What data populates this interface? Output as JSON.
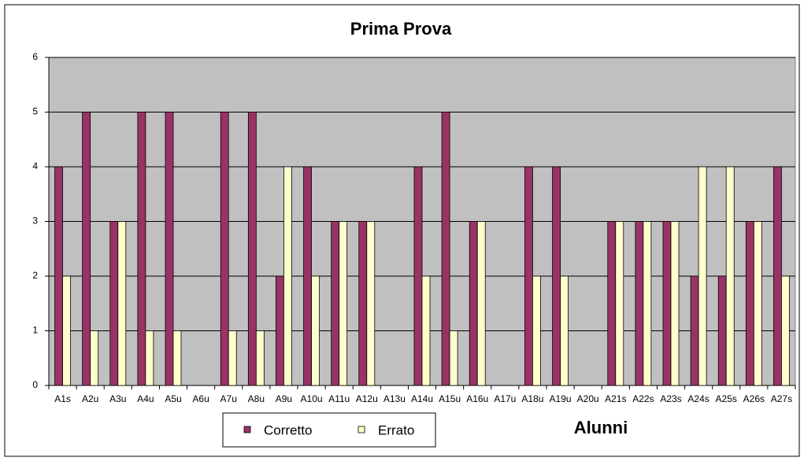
{
  "chart_data": {
    "type": "bar",
    "title": "Prima Prova",
    "x_label": "Alunni",
    "categories": [
      "A1s",
      "A2u",
      "A3u",
      "A4u",
      "A5u",
      "A6u",
      "A7u",
      "A8u",
      "A9u",
      "A10u",
      "A11u",
      "A12u",
      "A13u",
      "A14u",
      "A15u",
      "A16u",
      "A17u",
      "A18u",
      "A19u",
      "A20u",
      "A21s",
      "A22s",
      "A23s",
      "A24s",
      "A25s",
      "A26s",
      "A27s"
    ],
    "series": [
      {
        "name": "Corretto",
        "color": "#993366",
        "values": [
          4,
          5,
          3,
          5,
          5,
          0,
          5,
          5,
          2,
          4,
          3,
          3,
          0,
          4,
          5,
          3,
          0,
          4,
          4,
          0,
          3,
          3,
          3,
          2,
          2,
          3,
          4
        ]
      },
      {
        "name": "Errato",
        "color": "#ffffcc",
        "values": [
          2,
          1,
          3,
          1,
          1,
          0,
          1,
          1,
          4,
          2,
          3,
          3,
          0,
          2,
          1,
          3,
          0,
          2,
          2,
          0,
          3,
          3,
          3,
          4,
          4,
          3,
          2
        ]
      }
    ],
    "ylim": [
      0,
      6
    ],
    "yticks": [
      0,
      1,
      2,
      3,
      4,
      5,
      6
    ],
    "grid": true,
    "legend": "bottom"
  }
}
